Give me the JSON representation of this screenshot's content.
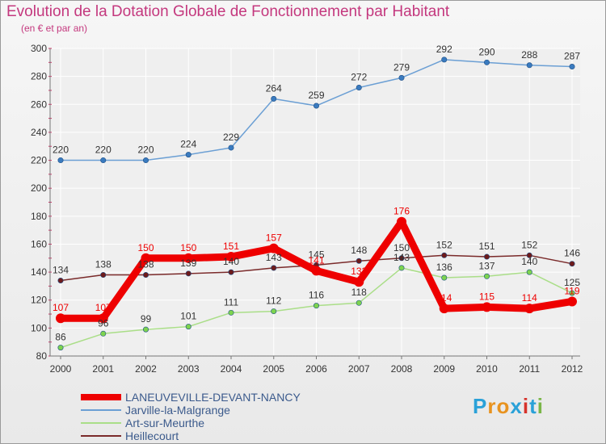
{
  "chart_data": {
    "type": "line",
    "title": "Evolution de la Dotation Globale de Fonctionnement par Habitant",
    "subtitle": "(en € et par an)",
    "xlabel": "",
    "ylabel": "",
    "x": [
      "2000",
      "2001",
      "2002",
      "2003",
      "2004",
      "2005",
      "2006",
      "2007",
      "2008",
      "2009",
      "2010",
      "2011",
      "2012"
    ],
    "ylim": [
      80,
      300
    ],
    "yticks": [
      80,
      100,
      120,
      140,
      160,
      180,
      200,
      220,
      240,
      260,
      280,
      300
    ],
    "grid": true,
    "legend_position": "bottom-left",
    "series": [
      {
        "name": "LANEUVEVILLE-DEVANT-NANCY",
        "color": "#ee0000",
        "marker": "#ee0000",
        "labelColor": "#ee0000",
        "values": [
          107,
          107,
          150,
          150,
          151,
          157,
          141,
          133,
          176,
          114,
          115,
          114,
          119
        ],
        "labels": [
          "107",
          "107",
          "150",
          "150",
          "151",
          "157",
          "141",
          "133",
          "176",
          "114",
          "115",
          "114",
          "119"
        ]
      },
      {
        "name": "Jarville-la-Malgrange",
        "color": "#6b9fd4",
        "marker": "#3a7bbf",
        "labelColor": "#333333",
        "values": [
          220,
          220,
          220,
          224,
          229,
          264,
          259,
          272,
          279,
          292,
          290,
          288,
          287
        ],
        "labels": [
          "220",
          "220",
          "220",
          "224",
          "229",
          "264",
          "259",
          "272",
          "279",
          "292",
          "290",
          "288",
          "287"
        ]
      },
      {
        "name": "Art-sur-Meurthe",
        "color": "#aade88",
        "marker": "#7dd44e",
        "labelColor": "#333333",
        "values": [
          86,
          96,
          99,
          101,
          111,
          112,
          116,
          118,
          143,
          136,
          137,
          140,
          125
        ],
        "labels": [
          "86",
          "96",
          "99",
          "101",
          "111",
          "112",
          "116",
          "118",
          "143",
          "136",
          "137",
          "140",
          "125"
        ]
      },
      {
        "name": "Heillecourt",
        "color": "#7a2a2a",
        "marker": "#6e1b1b",
        "labelColor": "#333333",
        "values": [
          134,
          138,
          138,
          139,
          140,
          143,
          145,
          148,
          150,
          152,
          151,
          152,
          146
        ],
        "labels": [
          "134",
          "138",
          "138",
          "139",
          "140",
          "143",
          "145",
          "148",
          "150",
          "152",
          "151",
          "152",
          "146"
        ]
      }
    ]
  },
  "logo": {
    "text": "Proxiti",
    "colors": [
      "#2aa1d8",
      "#e8931f",
      "#e8931f",
      "#2aa1d8",
      "#d6322b",
      "#2aa1d8",
      "#7ab648"
    ]
  },
  "colors": {
    "title": "#c4387e",
    "grid": "#ffffff",
    "background": "#efefef",
    "axis": "#777777",
    "tick": "#cc3366"
  }
}
